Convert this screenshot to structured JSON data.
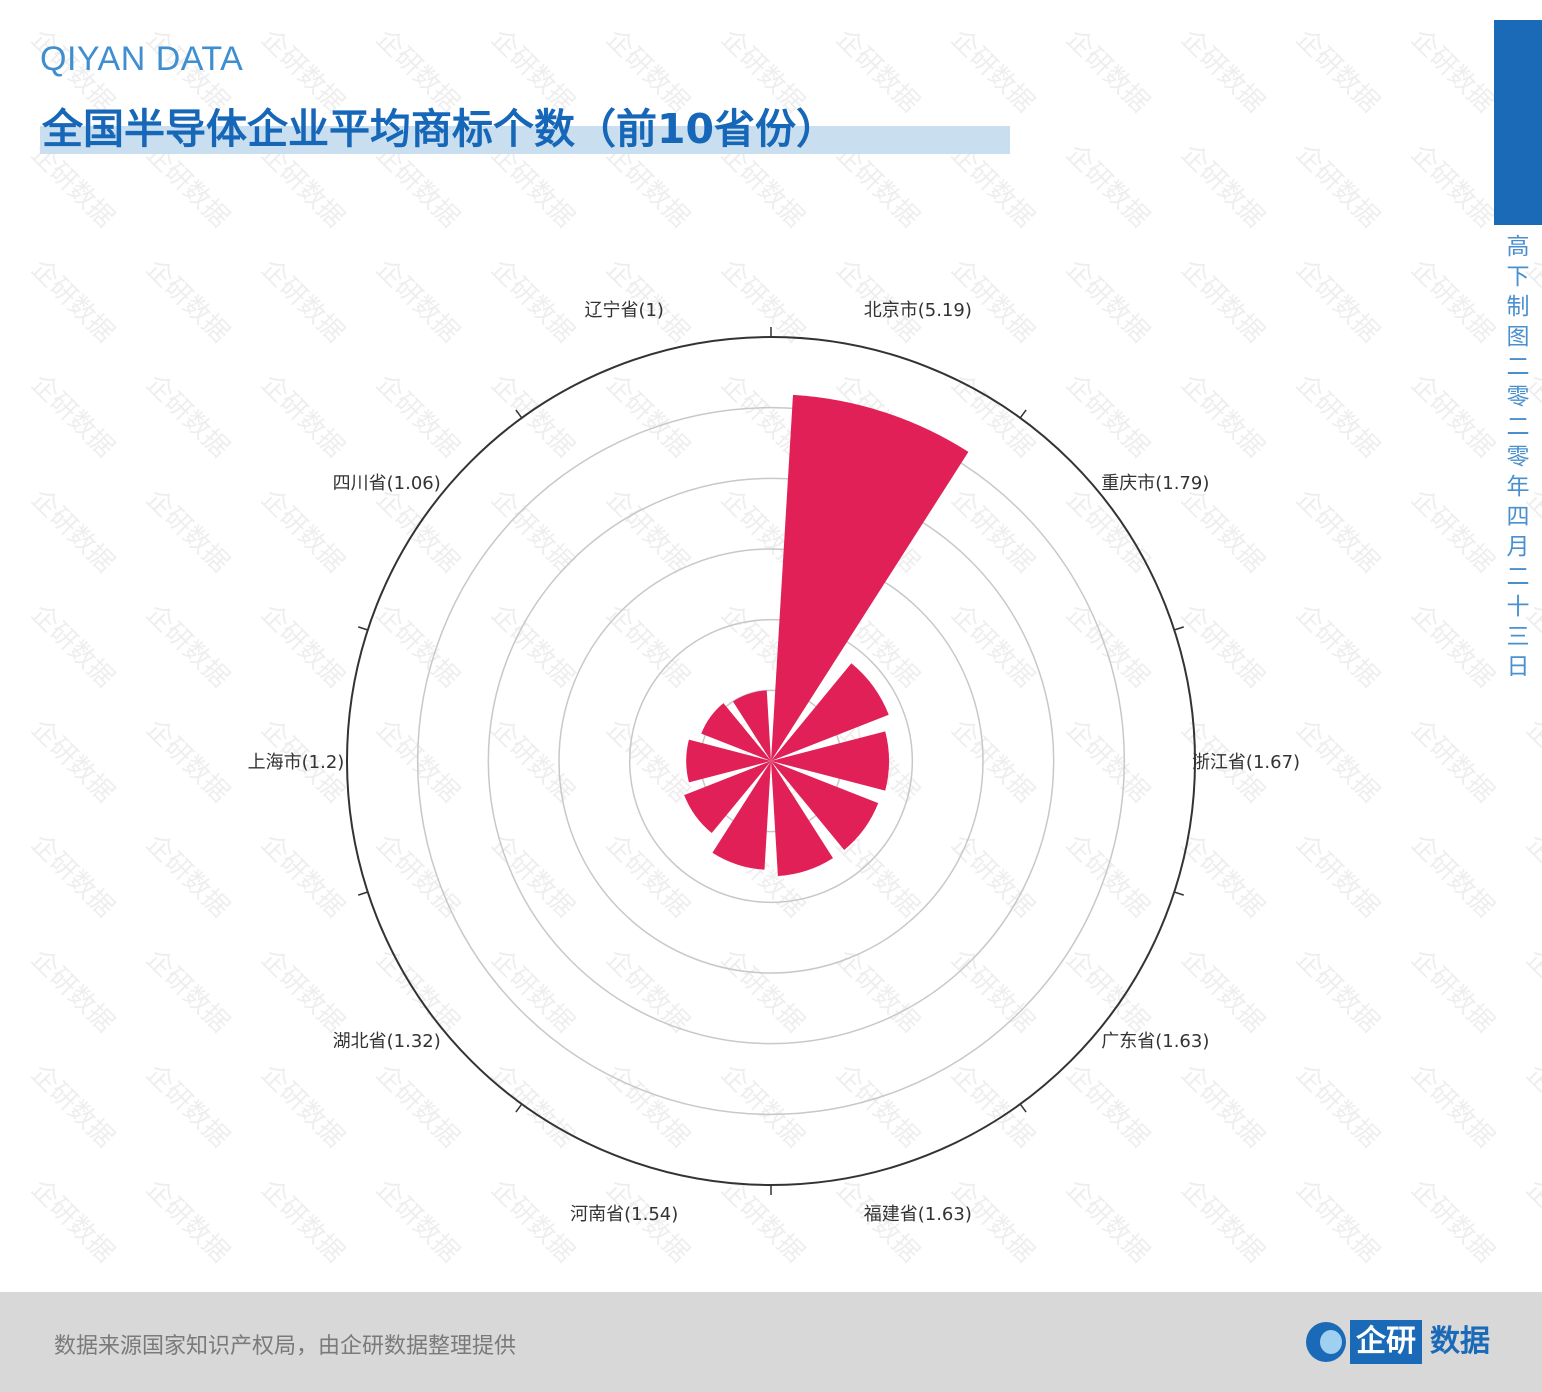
{
  "header": {
    "brand": "QIYAN DATA",
    "title": "全国半导体企业平均商标个数（前10省份）"
  },
  "side": {
    "caption": "高下制图 二零二零年四月二十三日"
  },
  "footer": {
    "source": "数据来源国家知识产权局，由企研数据整理提供",
    "logo_box": "企研",
    "logo_text": "数据"
  },
  "watermark": {
    "text": "企研数据"
  },
  "colors": {
    "bar": "#e02057",
    "brand": "#1a6ab8",
    "grid": "#c8c8c8",
    "axis": "#333333"
  },
  "chart_data": {
    "type": "polar-bar",
    "title": "全国半导体企业平均商标个数（前10省份）",
    "categories": [
      "北京市",
      "重庆市",
      "浙江省",
      "广东省",
      "福建省",
      "河南省",
      "湖北省",
      "上海市",
      "四川省",
      "辽宁省"
    ],
    "values": [
      5.19,
      1.79,
      1.67,
      1.63,
      1.63,
      1.54,
      1.32,
      1.2,
      1.06,
      1
    ],
    "labels": [
      "北京市(5.19)",
      "重庆市(1.79)",
      "浙江省(1.67)",
      "广东省(1.63)",
      "福建省(1.63)",
      "河南省(1.54)",
      "湖北省(1.32)",
      "上海市(1.2)",
      "四川省(1.06)",
      "辽宁省(1)"
    ],
    "rlim": [
      0,
      6
    ],
    "grid_rings": [
      1,
      2,
      3,
      4,
      5,
      6
    ],
    "grid": true,
    "legend": "none"
  }
}
